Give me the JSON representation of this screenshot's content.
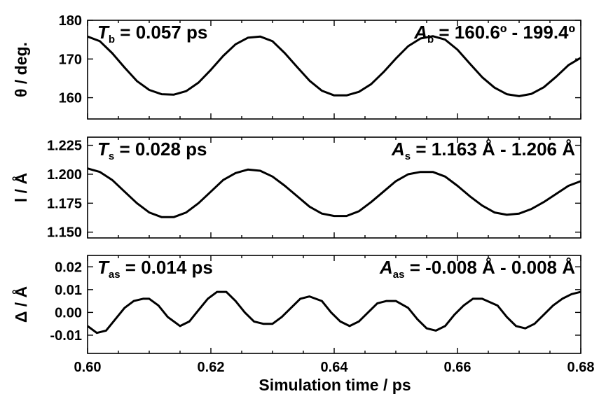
{
  "chart_data": [
    {
      "type": "line",
      "ylabel": "θ / deg.",
      "xlim": [
        0.6,
        0.68
      ],
      "ylim": [
        154.5,
        180
      ],
      "yticks": [
        160,
        170,
        180
      ],
      "ytick_labels": [
        "160",
        "170",
        "180"
      ],
      "period_label": {
        "symbol": "T",
        "sub": "b",
        "text": " = 0.057 ps"
      },
      "amplitude_label": {
        "symbol": "A",
        "sub": "b",
        "text": " = 160.6º - 199.4º"
      },
      "series": [
        {
          "x": [
            0.6,
            0.602,
            0.604,
            0.606,
            0.608,
            0.61,
            0.612,
            0.614,
            0.616,
            0.618,
            0.62,
            0.622,
            0.624,
            0.626,
            0.628,
            0.63,
            0.632,
            0.634,
            0.636,
            0.638,
            0.64,
            0.642,
            0.644,
            0.646,
            0.648,
            0.65,
            0.652,
            0.654,
            0.656,
            0.658,
            0.66,
            0.662,
            0.664,
            0.666,
            0.668,
            0.67,
            0.672,
            0.674,
            0.676,
            0.678,
            0.68
          ],
          "values": [
            175.8,
            174.6,
            171.5,
            167.8,
            164.3,
            162.0,
            160.9,
            160.8,
            161.7,
            163.9,
            167.2,
            170.8,
            173.8,
            175.5,
            175.8,
            174.6,
            171.5,
            167.9,
            164.4,
            161.8,
            160.6,
            160.6,
            161.5,
            163.5,
            166.6,
            170.1,
            173.3,
            175.3,
            175.9,
            175.0,
            172.4,
            168.8,
            165.3,
            162.6,
            160.9,
            160.4,
            161.0,
            162.7,
            165.4,
            168.4,
            170.3
          ]
        }
      ]
    },
    {
      "type": "line",
      "ylabel": "l / Å",
      "xlim": [
        0.6,
        0.68
      ],
      "ylim": [
        1.145,
        1.232
      ],
      "yticks": [
        1.15,
        1.175,
        1.2,
        1.225
      ],
      "ytick_labels": [
        "1.150",
        "1.175",
        "1.200",
        "1.225"
      ],
      "period_label": {
        "symbol": "T",
        "sub": "s",
        "text": " = 0.028 ps"
      },
      "amplitude_label": {
        "symbol": "A",
        "sub": "s",
        "text": " = 1.163 Å - 1.206 Å"
      },
      "series": [
        {
          "x": [
            0.6,
            0.602,
            0.604,
            0.606,
            0.608,
            0.61,
            0.612,
            0.614,
            0.616,
            0.618,
            0.62,
            0.622,
            0.624,
            0.626,
            0.628,
            0.63,
            0.632,
            0.634,
            0.636,
            0.638,
            0.64,
            0.642,
            0.644,
            0.646,
            0.648,
            0.65,
            0.652,
            0.654,
            0.656,
            0.658,
            0.66,
            0.662,
            0.664,
            0.666,
            0.668,
            0.67,
            0.672,
            0.674,
            0.676,
            0.678,
            0.68
          ],
          "values": [
            1.205,
            1.202,
            1.195,
            1.185,
            1.175,
            1.167,
            1.163,
            1.163,
            1.167,
            1.175,
            1.185,
            1.195,
            1.201,
            1.204,
            1.203,
            1.198,
            1.19,
            1.181,
            1.172,
            1.166,
            1.164,
            1.164,
            1.168,
            1.176,
            1.185,
            1.194,
            1.2,
            1.202,
            1.202,
            1.198,
            1.19,
            1.181,
            1.173,
            1.167,
            1.165,
            1.166,
            1.17,
            1.176,
            1.183,
            1.19,
            1.194
          ]
        }
      ]
    },
    {
      "type": "line",
      "ylabel": "Δ / Å",
      "xlabel": "Simulation time / ps",
      "xlim": [
        0.6,
        0.68
      ],
      "xticks": [
        0.6,
        0.62,
        0.64,
        0.66,
        0.68
      ],
      "xtick_labels": [
        "0.60",
        "0.62",
        "0.64",
        "0.66",
        "0.68"
      ],
      "ylim": [
        -0.018,
        0.025
      ],
      "yticks": [
        -0.01,
        0.0,
        0.01,
        0.02
      ],
      "ytick_labels": [
        "-0.01",
        "0.00",
        "0.01",
        "0.02"
      ],
      "period_label": {
        "symbol": "T",
        "sub": "as",
        "text": " = 0.014 ps"
      },
      "amplitude_label": {
        "symbol": "A",
        "sub": "as",
        "text": " = -0.008 Å - 0.008 Å"
      },
      "series": [
        {
          "x": [
            0.6,
            0.6015,
            0.603,
            0.6045,
            0.606,
            0.6075,
            0.609,
            0.61,
            0.6115,
            0.613,
            0.615,
            0.6165,
            0.618,
            0.6195,
            0.621,
            0.6225,
            0.624,
            0.6255,
            0.627,
            0.6285,
            0.63,
            0.6315,
            0.633,
            0.6345,
            0.636,
            0.638,
            0.6395,
            0.641,
            0.6425,
            0.644,
            0.6455,
            0.647,
            0.6485,
            0.65,
            0.652,
            0.6535,
            0.655,
            0.6565,
            0.658,
            0.6595,
            0.661,
            0.6625,
            0.664,
            0.6665,
            0.668,
            0.6695,
            0.671,
            0.6725,
            0.674,
            0.6755,
            0.677,
            0.6785,
            0.68
          ],
          "values": [
            -0.006,
            -0.009,
            -0.008,
            -0.003,
            0.002,
            0.005,
            0.006,
            0.006,
            0.003,
            -0.002,
            -0.006,
            -0.004,
            0.001,
            0.006,
            0.009,
            0.009,
            0.005,
            0.0,
            -0.004,
            -0.005,
            -0.005,
            -0.002,
            0.002,
            0.006,
            0.007,
            0.005,
            0.0,
            -0.004,
            -0.006,
            -0.004,
            0.0,
            0.004,
            0.005,
            0.005,
            0.002,
            -0.003,
            -0.007,
            -0.008,
            -0.006,
            -0.001,
            0.003,
            0.006,
            0.006,
            0.003,
            -0.002,
            -0.006,
            -0.007,
            -0.005,
            -0.001,
            0.003,
            0.006,
            0.008,
            0.009
          ]
        }
      ]
    }
  ]
}
